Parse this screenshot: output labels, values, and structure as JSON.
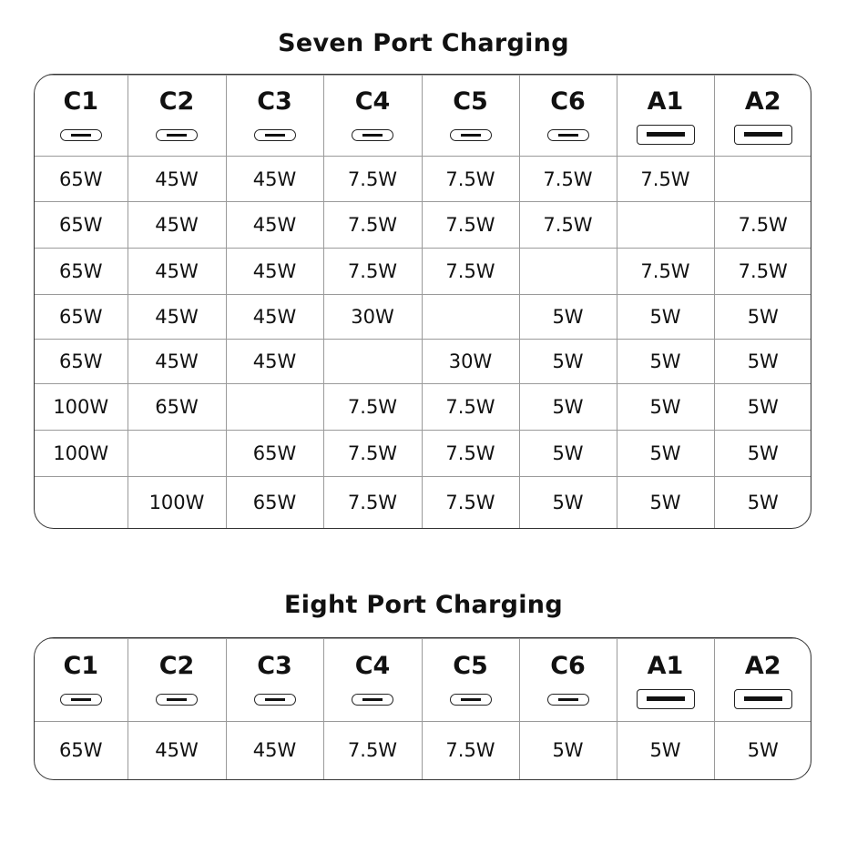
{
  "tables": [
    {
      "title": "Seven Port Charging",
      "columns": [
        {
          "label": "C1",
          "port": "usb-c"
        },
        {
          "label": "C2",
          "port": "usb-c"
        },
        {
          "label": "C3",
          "port": "usb-c"
        },
        {
          "label": "C4",
          "port": "usb-c"
        },
        {
          "label": "C5",
          "port": "usb-c"
        },
        {
          "label": "C6",
          "port": "usb-c"
        },
        {
          "label": "A1",
          "port": "usb-a"
        },
        {
          "label": "A2",
          "port": "usb-a"
        }
      ],
      "rows": [
        [
          "65W",
          "45W",
          "45W",
          "7.5W",
          "7.5W",
          "7.5W",
          "7.5W",
          ""
        ],
        [
          "65W",
          "45W",
          "45W",
          "7.5W",
          "7.5W",
          "7.5W",
          "",
          "7.5W"
        ],
        [
          "65W",
          "45W",
          "45W",
          "7.5W",
          "7.5W",
          "",
          "7.5W",
          "7.5W"
        ],
        [
          "65W",
          "45W",
          "45W",
          "30W",
          "",
          "5W",
          "5W",
          "5W"
        ],
        [
          "65W",
          "45W",
          "45W",
          "",
          "30W",
          "5W",
          "5W",
          "5W"
        ],
        [
          "100W",
          "65W",
          "",
          "7.5W",
          "7.5W",
          "5W",
          "5W",
          "5W"
        ],
        [
          "100W",
          "",
          "65W",
          "7.5W",
          "7.5W",
          "5W",
          "5W",
          "5W"
        ],
        [
          "",
          "100W",
          "65W",
          "7.5W",
          "7.5W",
          "5W",
          "5W",
          "5W"
        ]
      ]
    },
    {
      "title": "Eight Port Charging",
      "columns": [
        {
          "label": "C1",
          "port": "usb-c"
        },
        {
          "label": "C2",
          "port": "usb-c"
        },
        {
          "label": "C3",
          "port": "usb-c"
        },
        {
          "label": "C4",
          "port": "usb-c"
        },
        {
          "label": "C5",
          "port": "usb-c"
        },
        {
          "label": "C6",
          "port": "usb-c"
        },
        {
          "label": "A1",
          "port": "usb-a"
        },
        {
          "label": "A2",
          "port": "usb-a"
        }
      ],
      "rows": [
        [
          "65W",
          "45W",
          "45W",
          "7.5W",
          "7.5W",
          "5W",
          "5W",
          "5W"
        ]
      ]
    }
  ]
}
